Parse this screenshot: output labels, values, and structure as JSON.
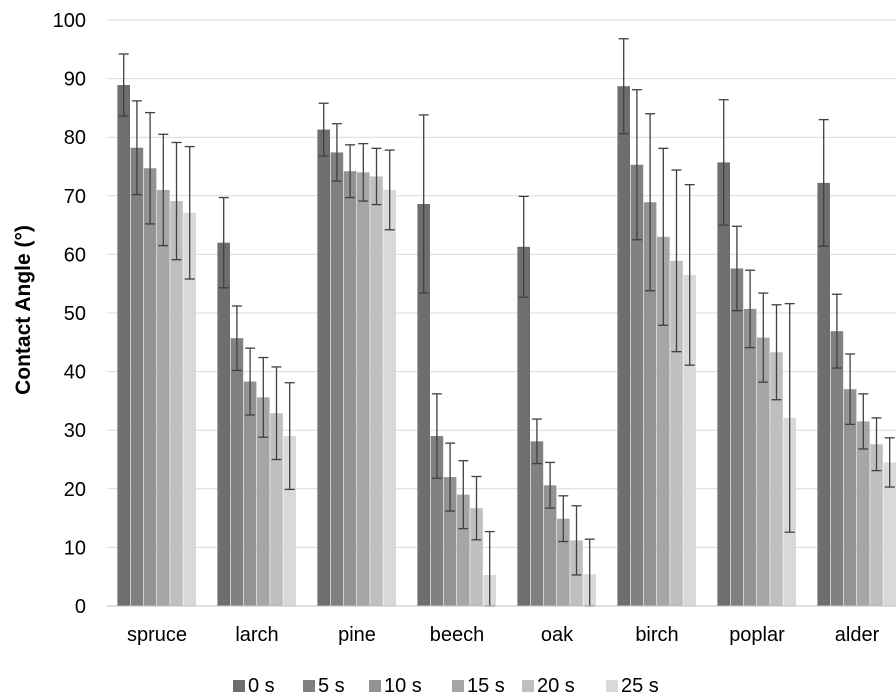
{
  "chart_data": {
    "type": "bar",
    "title": "",
    "xlabel": "",
    "ylabel": "Contact Angle (°)",
    "ylim": [
      0,
      100
    ],
    "yticks": [
      0,
      10,
      20,
      30,
      40,
      50,
      60,
      70,
      80,
      90,
      100
    ],
    "grid": true,
    "legend_position": "bottom",
    "error_bars": true,
    "categories": [
      "spruce",
      "larch",
      "pine",
      "beech",
      "oak",
      "birch",
      "poplar",
      "alder"
    ],
    "series": [
      {
        "name": "0 s",
        "color": "#6e6e6e",
        "values": [
          88.9,
          62.0,
          81.3,
          68.6,
          61.3,
          88.7,
          75.7,
          72.2
        ],
        "errors": [
          5.3,
          7.7,
          4.5,
          15.2,
          8.6,
          8.1,
          10.7,
          10.8
        ]
      },
      {
        "name": "5 s",
        "color": "#808080",
        "values": [
          78.2,
          45.7,
          77.4,
          29.0,
          28.1,
          75.3,
          57.6,
          46.9
        ],
        "errors": [
          8.0,
          5.5,
          4.9,
          7.2,
          3.8,
          12.8,
          7.2,
          6.3
        ]
      },
      {
        "name": "10 s",
        "color": "#939393",
        "values": [
          74.7,
          38.3,
          74.2,
          22.0,
          20.6,
          68.9,
          50.7,
          37.0
        ],
        "errors": [
          9.5,
          5.7,
          4.5,
          5.8,
          3.9,
          15.1,
          6.6,
          6.0
        ]
      },
      {
        "name": "15 s",
        "color": "#a6a6a6",
        "values": [
          71.0,
          35.6,
          74.0,
          19.0,
          14.9,
          63.0,
          45.8,
          31.5
        ],
        "errors": [
          9.5,
          6.8,
          4.9,
          5.8,
          3.9,
          15.1,
          7.6,
          4.7
        ]
      },
      {
        "name": "20 s",
        "color": "#bfbfbf",
        "values": [
          69.1,
          32.9,
          73.3,
          16.7,
          11.2,
          58.9,
          43.3,
          27.6
        ],
        "errors": [
          10.0,
          7.9,
          4.8,
          5.4,
          5.9,
          15.5,
          8.1,
          4.5
        ]
      },
      {
        "name": "25 s",
        "color": "#d9d9d9",
        "values": [
          67.1,
          29.0,
          71.0,
          5.3,
          5.4,
          56.5,
          32.1,
          24.5
        ],
        "errors": [
          11.3,
          9.1,
          6.8,
          7.4,
          6.0,
          15.4,
          19.5,
          4.2
        ]
      }
    ]
  }
}
